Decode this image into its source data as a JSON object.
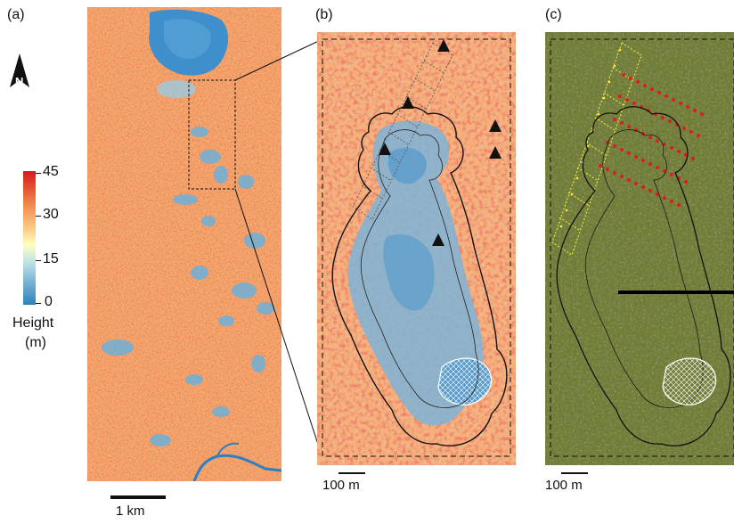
{
  "panels": {
    "a": {
      "label": "(a)",
      "scale_label": "1 km"
    },
    "b": {
      "label": "(b)",
      "scale_label": "100 m"
    },
    "c": {
      "label": "(c)",
      "scale_label": "100 m"
    }
  },
  "north_arrow": {
    "letter": "N",
    "icon": "north-arrow-icon"
  },
  "legend": {
    "ticks": [
      "45",
      "30",
      "15",
      "0"
    ],
    "title_line1": "Height",
    "title_line2": "(m)",
    "colors": [
      "#d7191c",
      "#f08a4b",
      "#fdd28e",
      "#fffebe",
      "#bfe3e8",
      "#7fb6d6",
      "#2b83ba"
    ]
  },
  "colors": {
    "canopy_high": "#d7191c",
    "canopy_mid": "#f4a461",
    "gap_low": "#3a8fc8",
    "aerial_green": "#6b7a2e",
    "survey_yellow": "#ffef3a",
    "tree_red": "#d7191c"
  }
}
